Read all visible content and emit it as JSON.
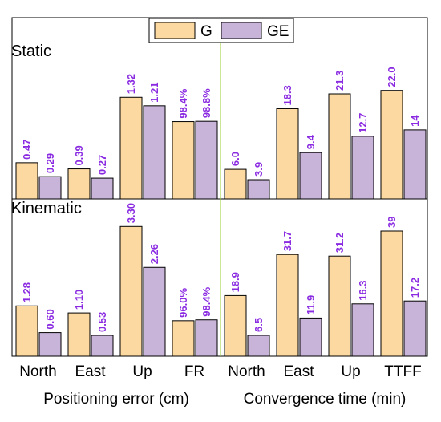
{
  "chart_data": {
    "type": "bar",
    "legend": {
      "placement": "top-center",
      "entries": [
        {
          "name": "G",
          "color": "#FBD9A0"
        },
        {
          "name": "GE",
          "color": "#C9B4D9"
        }
      ]
    },
    "categories": [
      "North",
      "East",
      "Up",
      "FR",
      "North",
      "East",
      "Up",
      "TTFF"
    ],
    "group_labels": [
      "Positioning error (cm)",
      "Convergence time (min)"
    ],
    "value_label_color": "#8A2BE2",
    "panels": [
      {
        "label": "Static",
        "series": [
          {
            "name": "G",
            "values": [
              0.47,
              0.39,
              1.32,
              98.4,
              6.0,
              18.3,
              21.3,
              22.0
            ],
            "labels": [
              "0.47",
              "0.39",
              "1.32",
              "98.4%",
              "6.0",
              "18.3",
              "21.3",
              "22.0"
            ]
          },
          {
            "name": "GE",
            "values": [
              0.29,
              0.27,
              1.21,
              98.8,
              3.9,
              9.4,
              12.7,
              14
            ],
            "labels": [
              "0.29",
              "0.27",
              "1.21",
              "98.8%",
              "3.9",
              "9.4",
              "12.7",
              "14"
            ]
          }
        ]
      },
      {
        "label": "Kinematic",
        "series": [
          {
            "name": "G",
            "values": [
              1.28,
              1.1,
              3.3,
              96.0,
              18.9,
              31.7,
              31.2,
              39
            ],
            "labels": [
              "1.28",
              "1.10",
              "3.30",
              "96.0%",
              "18.9",
              "31.7",
              "31.2",
              "39"
            ]
          },
          {
            "name": "GE",
            "values": [
              0.6,
              0.53,
              2.26,
              98.4,
              6.5,
              11.9,
              16.3,
              17.2
            ],
            "labels": [
              "0.60",
              "0.53",
              "2.26",
              "98.4%",
              "6.5",
              "11.9",
              "16.3",
              "17.2"
            ]
          }
        ]
      }
    ]
  }
}
